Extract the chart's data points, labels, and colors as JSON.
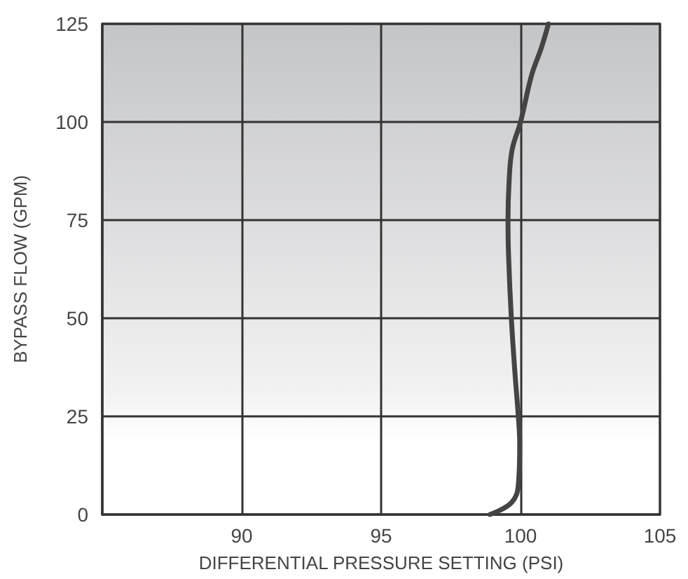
{
  "chart_data": {
    "type": "line",
    "xlabel": "DIFFERENTIAL PRESSURE SETTING (PSI)",
    "ylabel": "BYPASS FLOW (GPM)",
    "x": [
      98.9,
      99.67,
      99.92,
      99.97,
      99.92,
      99.8,
      99.67,
      99.57,
      99.55,
      99.59,
      99.7,
      100,
      100.4,
      100.75,
      101
    ],
    "values": [
      0,
      3,
      7.5,
      18,
      25,
      36,
      50,
      66,
      75,
      85,
      93,
      100,
      112,
      119,
      125
    ],
    "color": "#444444",
    "marker": "none",
    "line_style": "solid",
    "xlim": [
      85,
      105
    ],
    "xticks": [
      {
        "value": 85,
        "label": null
      },
      90,
      95,
      100,
      105
    ],
    "ylim": [
      0,
      125
    ],
    "yticks": [
      0,
      25,
      50,
      75,
      100,
      125
    ],
    "grid": true
  }
}
